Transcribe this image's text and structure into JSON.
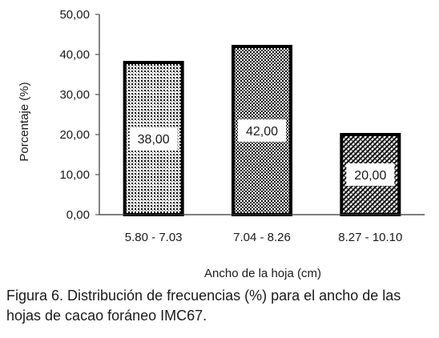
{
  "chart_data": {
    "type": "bar",
    "categories": [
      "5.80 - 7.03",
      "7.04 - 8.26",
      "8.27 - 10.10"
    ],
    "values": [
      38.0,
      42.0,
      20.0
    ],
    "value_labels": [
      "38,00",
      "42,00",
      "20,00"
    ],
    "xlabel": "Ancho de la hoja (cm)",
    "ylabel": "Porcentaje (%)",
    "ylim": [
      0,
      50
    ],
    "yticks": [
      "0,00",
      "10,00",
      "20,00",
      "30,00",
      "40,00",
      "50,00"
    ],
    "grid": false,
    "legend": "none",
    "bar_patterns": [
      "dots",
      "checker",
      "diagonal-weave"
    ]
  },
  "caption": "Figura 6. Distribución de frecuencias (%) para el ancho de las hojas de cacao foráneo IMC67."
}
